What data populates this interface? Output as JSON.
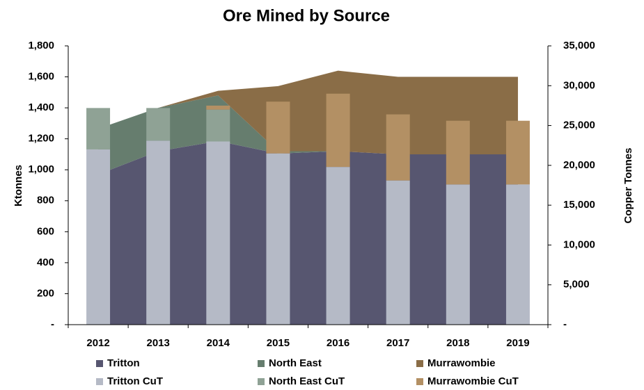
{
  "chart_data": {
    "type": "area-bar-combo",
    "title": "Ore Mined by Source",
    "ylabel": "Ktonnes",
    "y2label": "Copper Tonnes",
    "categories": [
      "2012",
      "2013",
      "2014",
      "2015",
      "2016",
      "2017",
      "2018",
      "2019"
    ],
    "ylim": [
      0,
      1800
    ],
    "yticks": [
      {
        "value": 0,
        "label": "-"
      },
      200,
      400,
      600,
      800,
      {
        "value": 1000,
        "label": "1,000"
      },
      {
        "value": 1200,
        "label": "1,200"
      },
      {
        "value": 1400,
        "label": "1,400"
      },
      {
        "value": 1600,
        "label": "1,600"
      },
      {
        "value": 1800,
        "label": "1,800"
      }
    ],
    "y2lim": [
      0,
      35000
    ],
    "y2ticks": [
      {
        "value": 0,
        "label": "-"
      },
      {
        "value": 5000,
        "label": "5,000"
      },
      {
        "value": 10000,
        "label": "10,000"
      },
      {
        "value": 15000,
        "label": "15,000"
      },
      {
        "value": 20000,
        "label": "20,000"
      },
      {
        "value": 25000,
        "label": "25,000"
      },
      {
        "value": 30000,
        "label": "30,000"
      },
      {
        "value": 35000,
        "label": "35,000"
      }
    ],
    "series": [
      {
        "name": "Tritton",
        "kind": "area",
        "color": "#575670",
        "values": [
          970,
          1120,
          1185,
          1105,
          1120,
          1100,
          1100,
          1100
        ]
      },
      {
        "name": "North East",
        "kind": "area",
        "color": "#667d6e",
        "values": [
          295,
          280,
          295,
          15,
          0,
          0,
          0,
          0
        ]
      },
      {
        "name": "Murrawombie",
        "kind": "area",
        "color": "#8a6d47",
        "values": [
          0,
          0,
          30,
          420,
          520,
          500,
          500,
          500
        ]
      },
      {
        "name": "Tritton CuT",
        "kind": "bar",
        "axis": "y2",
        "color": "#b5bac6",
        "values": [
          22000,
          23100,
          23000,
          21500,
          19800,
          18100,
          17600,
          17600
        ]
      },
      {
        "name": "North East CuT",
        "kind": "bar",
        "axis": "y2",
        "color": "#8fa295",
        "values": [
          5200,
          4100,
          4000,
          0,
          0,
          0,
          0,
          0
        ]
      },
      {
        "name": "Murrawombie CuT",
        "kind": "bar",
        "axis": "y2",
        "color": "#b39064",
        "values": [
          0,
          0,
          500,
          6500,
          9200,
          8300,
          8000,
          8000
        ]
      }
    ]
  }
}
